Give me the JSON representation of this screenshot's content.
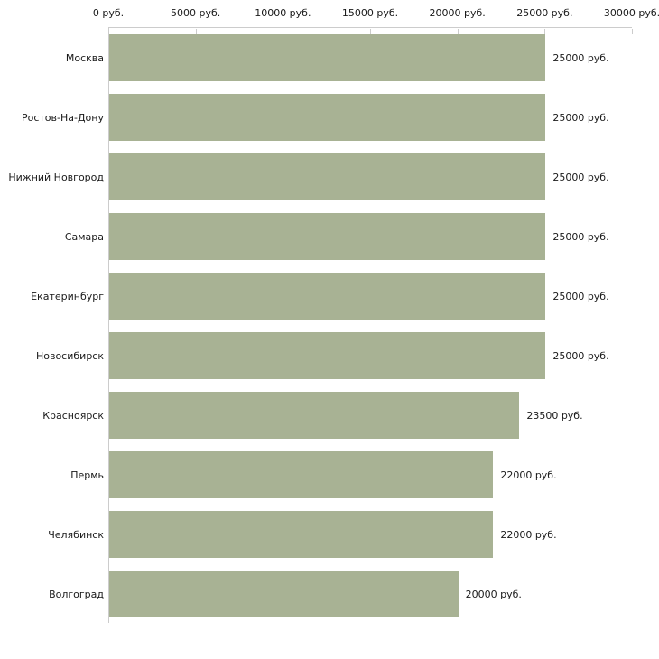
{
  "chart_data": {
    "type": "bar",
    "orientation": "horizontal",
    "title": "",
    "xlabel": "",
    "ylabel": "",
    "xlim": [
      0,
      30000
    ],
    "x_ticks": [
      0,
      5000,
      10000,
      15000,
      20000,
      25000,
      30000
    ],
    "x_tick_labels": [
      "0 руб.",
      "5000 руб.",
      "10000 руб.",
      "15000 руб.",
      "20000 руб.",
      "25000 руб.",
      "30000 руб."
    ],
    "categories": [
      "Москва",
      "Ростов-На-Дону",
      "Нижний Новгород",
      "Самара",
      "Екатеринбург",
      "Новосибирск",
      "Красноярск",
      "Пермь",
      "Челябинск",
      "Волгоград"
    ],
    "values": [
      25000,
      25000,
      25000,
      25000,
      25000,
      25000,
      23500,
      22000,
      22000,
      20000
    ],
    "value_labels": [
      "25000 руб.",
      "25000 руб.",
      "25000 руб.",
      "25000 руб.",
      "25000 руб.",
      "25000 руб.",
      "23500 руб.",
      "22000 руб.",
      "22000 руб.",
      "20000 руб."
    ],
    "legend": null,
    "grid": false,
    "colors": {
      "bar_fill": "#a8b294",
      "axis_line": "#cccccc",
      "text": "#1a1a1a",
      "background": "#ffffff"
    }
  }
}
